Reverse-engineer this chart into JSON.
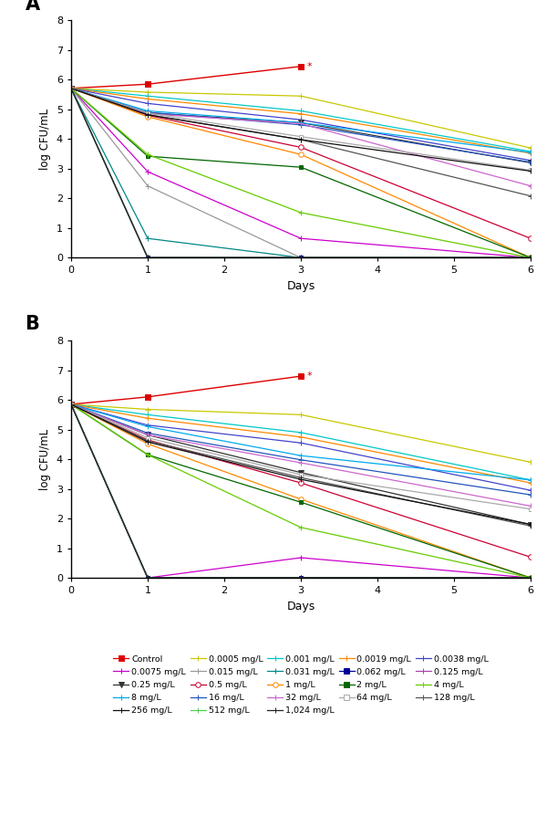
{
  "ylabel": "log CFU/mL",
  "xlabel": "Days",
  "xlim": [
    0,
    6
  ],
  "ylim": [
    0,
    8
  ],
  "yticks": [
    0,
    1,
    2,
    3,
    4,
    5,
    6,
    7,
    8
  ],
  "xticks": [
    0,
    1,
    2,
    3,
    4,
    5,
    6
  ],
  "days": [
    0,
    1,
    3,
    6
  ],
  "series": [
    {
      "label": "Control",
      "color": "#dd0000",
      "marker": "s",
      "markersize": 4,
      "mfc": "auto",
      "linewidth": 1.0,
      "A": [
        5.71,
        5.85,
        6.45,
        null
      ],
      "B": [
        5.85,
        6.1,
        6.8,
        null
      ],
      "A_star": true,
      "B_star": true
    },
    {
      "label": "0.0005 mg/L",
      "color": "#c8c800",
      "marker": "+",
      "markersize": 5,
      "mfc": "auto",
      "linewidth": 0.9,
      "A": [
        5.71,
        5.58,
        5.45,
        3.7
      ],
      "B": [
        5.85,
        5.68,
        5.5,
        3.9
      ]
    },
    {
      "label": "0.001 mg/L",
      "color": "#00c8c8",
      "marker": "+",
      "markersize": 5,
      "mfc": "auto",
      "linewidth": 0.9,
      "A": [
        5.71,
        5.45,
        4.95,
        3.58
      ],
      "B": [
        5.85,
        5.5,
        4.9,
        3.3
      ]
    },
    {
      "label": "0.0019 mg/L",
      "color": "#ff8800",
      "marker": "+",
      "markersize": 5,
      "mfc": "auto",
      "linewidth": 0.9,
      "A": [
        5.71,
        5.35,
        4.85,
        3.52
      ],
      "B": [
        5.85,
        5.38,
        4.75,
        3.2
      ]
    },
    {
      "label": "0.0038 mg/L",
      "color": "#4444cc",
      "marker": "+",
      "markersize": 5,
      "mfc": "auto",
      "linewidth": 0.9,
      "A": [
        5.71,
        5.2,
        4.65,
        3.28
      ],
      "B": [
        5.85,
        5.15,
        4.55,
        2.95
      ]
    },
    {
      "label": "0.0075 mg/L",
      "color": "#cc00cc",
      "marker": "+",
      "markersize": 5,
      "mfc": "auto",
      "linewidth": 0.9,
      "A": [
        5.71,
        2.9,
        0.65,
        0.0
      ],
      "B": [
        5.85,
        0.0,
        0.68,
        0.0
      ]
    },
    {
      "label": "0.015 mg/L",
      "color": "#999999",
      "marker": "+",
      "markersize": 5,
      "mfc": "auto",
      "linewidth": 0.9,
      "A": [
        5.71,
        2.42,
        0.0,
        0.0
      ],
      "B": [
        5.85,
        0.0,
        0.0,
        0.0
      ]
    },
    {
      "label": "0.031 mg/L",
      "color": "#008888",
      "marker": "+",
      "markersize": 5,
      "mfc": "auto",
      "linewidth": 0.9,
      "A": [
        5.71,
        0.65,
        0.0,
        0.0
      ],
      "B": [
        5.85,
        0.0,
        0.0,
        0.0
      ]
    },
    {
      "label": "0.062 mg/L",
      "color": "#000099",
      "marker": "s",
      "markersize": 3,
      "mfc": "auto",
      "linewidth": 0.9,
      "A": [
        5.71,
        0.0,
        0.0,
        0.0
      ],
      "B": [
        5.85,
        0.0,
        0.0,
        0.0
      ]
    },
    {
      "label": "0.125 mg/L",
      "color": "#aa44aa",
      "marker": "+",
      "markersize": 5,
      "mfc": "auto",
      "linewidth": 0.9,
      "A": [
        5.71,
        0.0,
        0.0,
        0.0
      ],
      "B": [
        5.85,
        0.0,
        0.0,
        0.0
      ]
    },
    {
      "label": "0.25 mg/L",
      "color": "#333333",
      "marker": "v",
      "markersize": 4,
      "mfc": "auto",
      "linewidth": 0.9,
      "A": [
        5.71,
        4.88,
        4.55,
        3.2
      ],
      "B": [
        5.85,
        4.82,
        3.55,
        1.8
      ]
    },
    {
      "label": "0.5 mg/L",
      "color": "#cc0033",
      "marker": "o",
      "markersize": 4,
      "mfc": "white",
      "linewidth": 0.9,
      "A": [
        5.71,
        4.8,
        3.72,
        0.65
      ],
      "B": [
        5.85,
        4.65,
        3.2,
        0.7
      ]
    },
    {
      "label": "1 mg/L",
      "color": "#ff8800",
      "marker": "o",
      "markersize": 4,
      "mfc": "white",
      "linewidth": 0.9,
      "A": [
        5.71,
        4.75,
        3.48,
        0.0
      ],
      "B": [
        5.85,
        4.52,
        2.65,
        0.0
      ]
    },
    {
      "label": "2 mg/L",
      "color": "#006600",
      "marker": "s",
      "markersize": 3,
      "mfc": "auto",
      "linewidth": 0.9,
      "A": [
        5.71,
        3.42,
        3.05,
        0.0
      ],
      "B": [
        5.85,
        4.15,
        2.55,
        0.0
      ]
    },
    {
      "label": "4 mg/L",
      "color": "#66cc00",
      "marker": "+",
      "markersize": 5,
      "mfc": "auto",
      "linewidth": 0.9,
      "A": [
        5.71,
        3.48,
        1.52,
        0.0
      ],
      "B": [
        5.85,
        4.15,
        1.7,
        0.0
      ]
    },
    {
      "label": "8 mg/L",
      "color": "#00aaee",
      "marker": "+",
      "markersize": 5,
      "mfc": "auto",
      "linewidth": 0.9,
      "A": [
        5.71,
        4.95,
        4.55,
        3.55
      ],
      "B": [
        5.85,
        5.1,
        4.12,
        3.3
      ]
    },
    {
      "label": "16 mg/L",
      "color": "#2255bb",
      "marker": "+",
      "markersize": 5,
      "mfc": "auto",
      "linewidth": 0.9,
      "A": [
        5.71,
        4.9,
        4.48,
        3.22
      ],
      "B": [
        5.85,
        4.88,
        3.98,
        2.8
      ]
    },
    {
      "label": "32 mg/L",
      "color": "#cc66cc",
      "marker": "+",
      "markersize": 5,
      "mfc": "auto",
      "linewidth": 0.9,
      "A": [
        5.71,
        4.85,
        4.52,
        2.42
      ],
      "B": [
        5.85,
        4.82,
        3.88,
        2.42
      ]
    },
    {
      "label": "64 mg/L",
      "color": "#aaaaaa",
      "marker": "s",
      "markersize": 3,
      "mfc": "white",
      "linewidth": 0.9,
      "A": [
        5.71,
        4.88,
        4.08,
        2.95
      ],
      "B": [
        5.85,
        4.72,
        3.48,
        2.32
      ]
    },
    {
      "label": "128 mg/L",
      "color": "#555555",
      "marker": "+",
      "markersize": 5,
      "mfc": "auto",
      "linewidth": 0.9,
      "A": [
        5.71,
        4.82,
        3.98,
        2.08
      ],
      "B": [
        5.85,
        4.62,
        3.38,
        1.75
      ]
    },
    {
      "label": "256 mg/L",
      "color": "#111111",
      "marker": "+",
      "markersize": 5,
      "mfc": "auto",
      "linewidth": 0.9,
      "A": [
        5.71,
        4.82,
        3.98,
        2.92
      ],
      "B": [
        5.85,
        4.58,
        3.32,
        1.8
      ]
    },
    {
      "label": "512 mg/L",
      "color": "#55cc55",
      "marker": "+",
      "markersize": 5,
      "mfc": "auto",
      "linewidth": 0.9,
      "A": [
        5.71,
        0.0,
        0.0,
        0.0
      ],
      "B": [
        5.85,
        0.0,
        0.0,
        0.0
      ]
    },
    {
      "label": "1,024 mg/L",
      "color": "#222222",
      "marker": "+",
      "markersize": 5,
      "mfc": "auto",
      "linewidth": 0.9,
      "A": [
        5.71,
        0.0,
        0.0,
        0.0
      ],
      "B": [
        5.85,
        0.0,
        0.0,
        0.0
      ]
    }
  ],
  "legend_order": [
    "Control",
    "0.0075 mg/L",
    "0.25 mg/L",
    "8 mg/L",
    "256 mg/L",
    "0.0005 mg/L",
    "0.015 mg/L",
    "0.5 mg/L",
    "16 mg/L",
    "512 mg/L",
    "0.001 mg/L",
    "0.031 mg/L",
    "1 mg/L",
    "32 mg/L",
    "1,024 mg/L",
    "0.0019 mg/L",
    "0.062 mg/L",
    "2 mg/L",
    "64 mg/L",
    "0.0038 mg/L",
    "0.125 mg/L",
    "4 mg/L",
    "128 mg/L"
  ]
}
